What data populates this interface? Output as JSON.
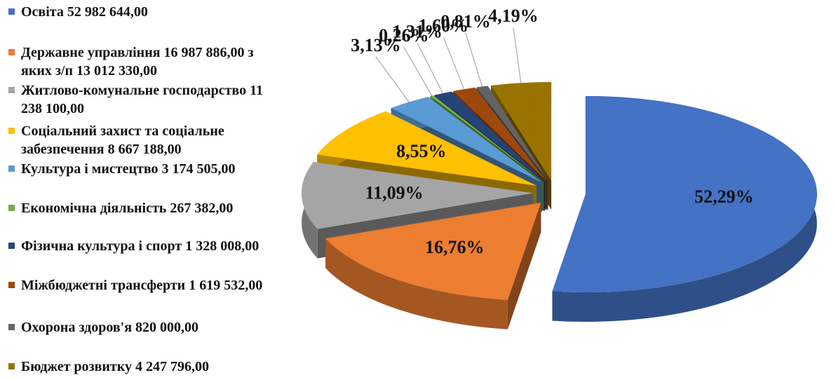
{
  "chart_data": {
    "type": "pie",
    "categories": [
      "Освіта 52 982 644,00",
      "Державне управління 16 987 886,00 з яких з/п 13 012 330,00",
      "Житлово-комунальне господарство 11 238 100,00",
      "Соціальний захист та соціальне забезпечення 8 667 188,00",
      "Культура і мистецтво 3 174 505,00",
      "Економічна діяльність 267 382,00",
      "Фізична культура і спорт 1 328 008,00",
      "Міжбюджетні трансферти 1 619 532,00",
      "Охорона здоров'я 820 000,00",
      "Бюджет розвитку 4 247 796,00"
    ],
    "values": [
      52.29,
      16.76,
      11.09,
      8.55,
      3.13,
      0.26,
      1.31,
      1.6,
      0.81,
      4.19
    ],
    "value_labels": [
      "52,29%",
      "16,76%",
      "11,09%",
      "8,55%",
      "3,13%",
      "0,26%",
      "1,31%",
      "1,60%",
      "0,81%",
      "4,19%"
    ],
    "colors": [
      "#4472c4",
      "#ed7d31",
      "#a5a5a5",
      "#ffc000",
      "#5b9bd5",
      "#70ad47",
      "#264478",
      "#9e480e",
      "#636363",
      "#997300"
    ],
    "legend": "left"
  }
}
